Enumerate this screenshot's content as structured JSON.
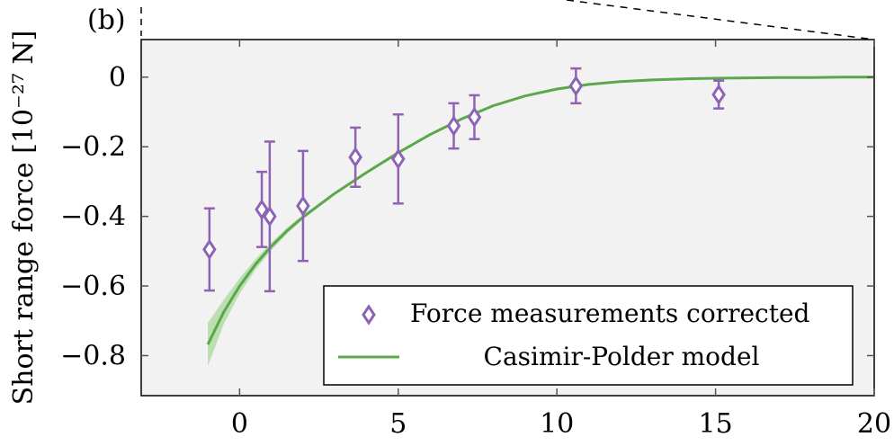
{
  "chart_data": {
    "type": "scatter",
    "panel_label": "(b)",
    "title": "",
    "xlabel": "",
    "ylabel": "Short range force [10⁻²⁷ N]",
    "xlim": [
      -3.1,
      20
    ],
    "ylim": [
      -0.915,
      0.108
    ],
    "xticks": [
      0,
      5,
      10,
      15,
      20
    ],
    "xtick_labels": [
      "0",
      "5",
      "10",
      "15",
      "20"
    ],
    "yticks": [
      0,
      -0.2,
      -0.4,
      -0.6,
      -0.8
    ],
    "ytick_labels": [
      "0",
      "−0.2",
      "−0.4",
      "−0.6",
      "−0.8"
    ],
    "grid": false,
    "legend_position": "bottom-right",
    "series": [
      {
        "name": "Force measurements corrected",
        "kind": "markers-with-errorbars",
        "marker": "diamond",
        "color": "#8e63b5",
        "x": [
          -0.95,
          0.7,
          0.95,
          2.0,
          3.65,
          5.0,
          6.75,
          7.4,
          10.6,
          15.1
        ],
        "y": [
          -0.495,
          -0.38,
          -0.4,
          -0.37,
          -0.23,
          -0.235,
          -0.14,
          -0.115,
          -0.025,
          -0.05
        ],
        "err": [
          0.118,
          0.108,
          0.215,
          0.158,
          0.085,
          0.128,
          0.065,
          0.063,
          0.05,
          0.04
        ]
      },
      {
        "name": "Casimir-Polder model",
        "kind": "line-with-band",
        "color": "#5aa84a",
        "band_color": "#a8d89a",
        "x": [
          -1.0,
          -0.5,
          0.0,
          0.5,
          1.0,
          1.5,
          2.0,
          3.0,
          4.0,
          5.0,
          6.0,
          7.0,
          8.0,
          9.0,
          10.0,
          11.0,
          12.0,
          13.0,
          14.0,
          15.0,
          16.0,
          17.0,
          18.0,
          19.0,
          20.0
        ],
        "y": [
          -0.768,
          -0.675,
          -0.6,
          -0.538,
          -0.486,
          -0.441,
          -0.402,
          -0.334,
          -0.274,
          -0.217,
          -0.165,
          -0.12,
          -0.082,
          -0.054,
          -0.034,
          -0.021,
          -0.013,
          -0.008,
          -0.005,
          -0.003,
          -0.002,
          -0.001,
          -0.001,
          0.0,
          0.0
        ],
        "band_lower": [
          -0.83,
          -0.71,
          -0.622,
          -0.553,
          -0.497,
          -0.45,
          -0.408,
          -0.338,
          -0.277,
          -0.219,
          -0.166,
          -0.121,
          -0.083,
          -0.055,
          -0.035,
          -0.022,
          -0.014,
          -0.009,
          -0.006,
          -0.004,
          -0.003,
          -0.002,
          -0.001,
          -0.001,
          0.0
        ],
        "band_upper": [
          -0.706,
          -0.64,
          -0.578,
          -0.523,
          -0.475,
          -0.432,
          -0.396,
          -0.33,
          -0.271,
          -0.215,
          -0.164,
          -0.119,
          -0.081,
          -0.053,
          -0.033,
          -0.02,
          -0.012,
          -0.007,
          -0.004,
          -0.002,
          -0.001,
          0.0,
          0.0,
          0.0,
          0.0
        ]
      }
    ]
  }
}
